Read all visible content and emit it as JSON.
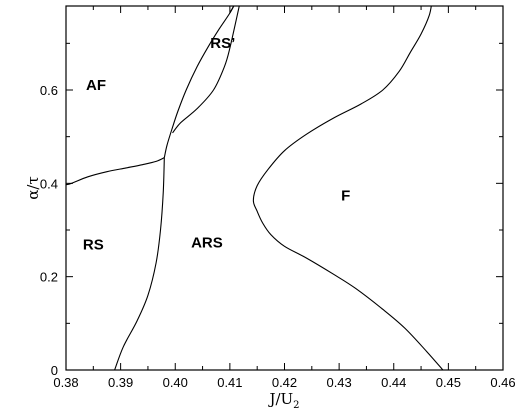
{
  "chart_data": {
    "type": "line",
    "title": "",
    "xlabel": "J/U",
    "xlabel_sub": "2",
    "ylabel": "α/τ",
    "xlim": [
      0.38,
      0.46
    ],
    "ylim": [
      0,
      0.78
    ],
    "grid": false,
    "xticks": [
      "0.38",
      "0.39",
      "0.40",
      "0.41",
      "0.42",
      "0.43",
      "0.44",
      "0.45",
      "0.46"
    ],
    "yticks": [
      "0",
      "0.2",
      "0.4",
      "0.6"
    ],
    "series": [
      {
        "x": [
          0.38,
          0.381,
          0.384,
          0.3875,
          0.391,
          0.394,
          0.3965,
          0.398
        ],
        "y": [
          0.397,
          0.4,
          0.414,
          0.425,
          0.433,
          0.44,
          0.447,
          0.455
        ]
      },
      {
        "x": [
          0.398,
          0.3985,
          0.3995,
          0.4005,
          0.402,
          0.404,
          0.406,
          0.408,
          0.41,
          0.4114
        ],
        "y": [
          0.455,
          0.482,
          0.52,
          0.555,
          0.6,
          0.65,
          0.692,
          0.73,
          0.765,
          0.795
        ]
      },
      {
        "x": [
          0.3889,
          0.3905,
          0.393,
          0.395,
          0.3965,
          0.3973,
          0.3978,
          0.398
        ],
        "y": [
          0.0,
          0.05,
          0.105,
          0.16,
          0.23,
          0.3,
          0.38,
          0.455
        ]
      },
      {
        "x": [
          0.3995,
          0.401,
          0.404,
          0.407,
          0.409,
          0.41,
          0.412
        ],
        "y": [
          0.508,
          0.53,
          0.56,
          0.6,
          0.65,
          0.69,
          0.795
        ]
      },
      {
        "x": [
          0.41,
          0.4114
        ],
        "y": [
          0.765,
          0.795
        ]
      },
      {
        "x": [
          0.449,
          0.446,
          0.442,
          0.438,
          0.433,
          0.429,
          0.424,
          0.42,
          0.4175,
          0.416,
          0.415,
          0.4143,
          0.415,
          0.417,
          0.42,
          0.424,
          0.429,
          0.434,
          0.438,
          0.441,
          0.443,
          0.445,
          0.4465,
          0.447
        ],
        "y": [
          0.0,
          0.04,
          0.09,
          0.13,
          0.175,
          0.205,
          0.24,
          0.265,
          0.29,
          0.315,
          0.34,
          0.363,
          0.395,
          0.43,
          0.47,
          0.505,
          0.54,
          0.57,
          0.6,
          0.64,
          0.68,
          0.72,
          0.76,
          0.79
        ]
      }
    ],
    "annotations": [
      {
        "text": "AF",
        "x": 0.3855,
        "y": 0.6
      },
      {
        "text": "RS’",
        "x": 0.4087,
        "y": 0.69
      },
      {
        "text": "F",
        "x": 0.4312,
        "y": 0.363
      },
      {
        "text": "RS",
        "x": 0.385,
        "y": 0.258
      },
      {
        "text": "ARS",
        "x": 0.4058,
        "y": 0.262
      }
    ]
  }
}
